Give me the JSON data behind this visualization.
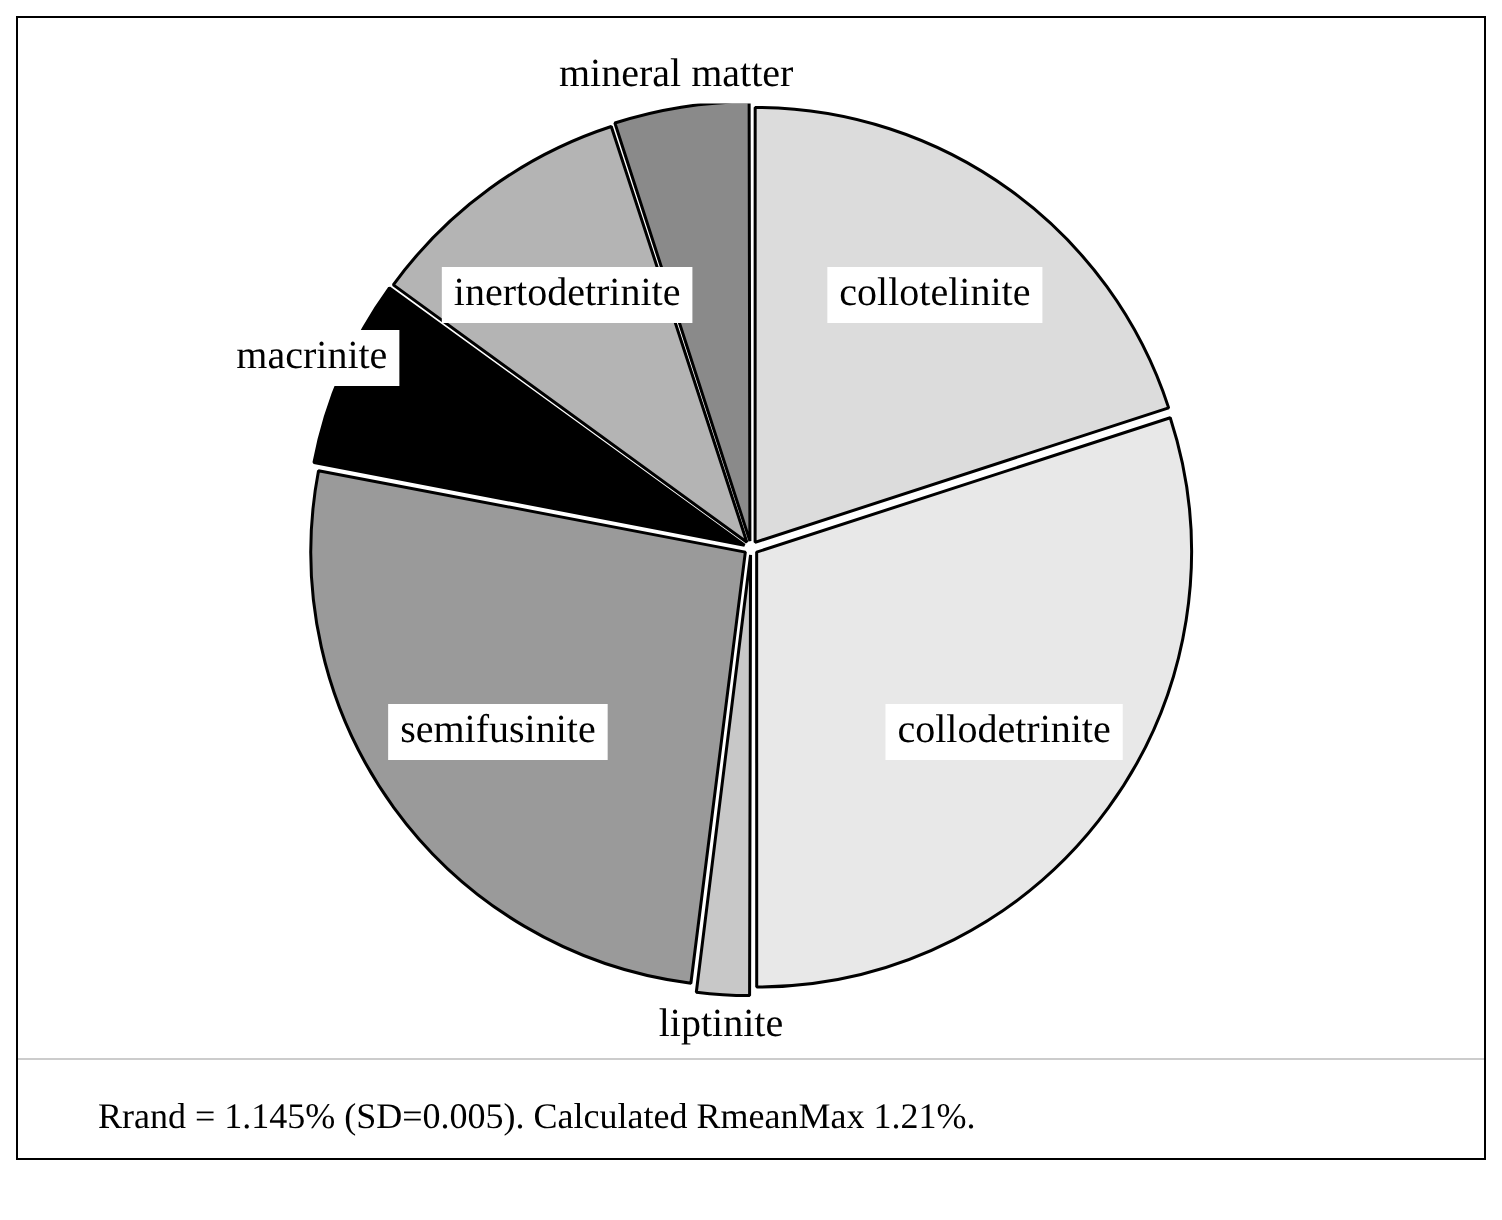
{
  "chart_data": {
    "type": "pie",
    "categories": [
      "collotelinite",
      "collodetrinite",
      "liptinite",
      "semifusinite",
      "macrinite",
      "inertodetrinite",
      "mineral matter"
    ],
    "values": [
      20,
      30,
      2,
      26,
      7,
      10,
      5
    ],
    "colors": [
      "#dcdcdc",
      "#e8e8e8",
      "#c8c8c8",
      "#9a9a9a",
      "#000000",
      "#b4b4b4",
      "#8a8a8a"
    ],
    "legend": false,
    "annotations": [
      "Rrand = 1.145% (SD=0.005). Calculated RmeanMax 1.21%."
    ]
  }
}
